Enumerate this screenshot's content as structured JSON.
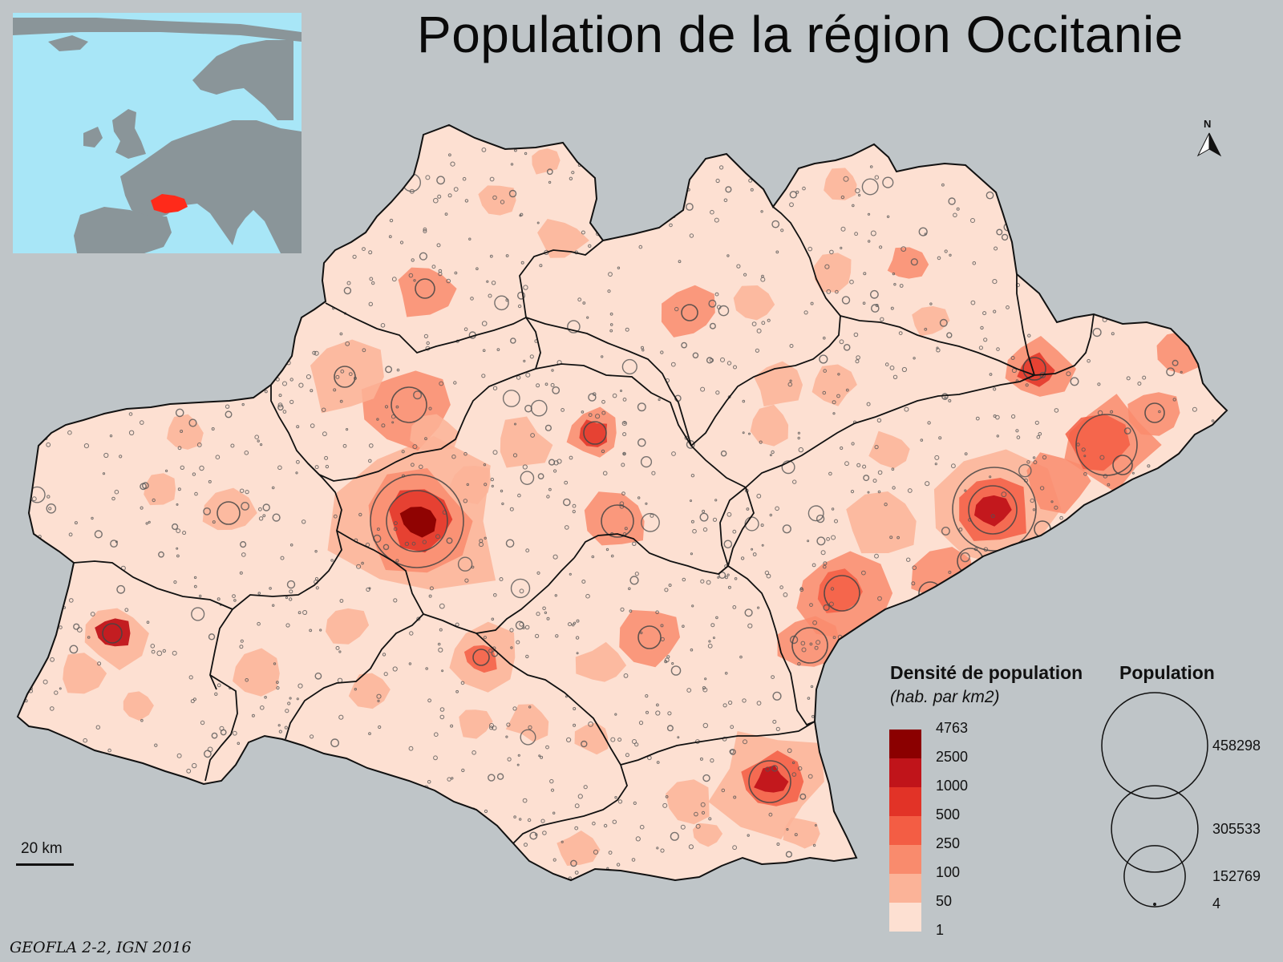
{
  "map": {
    "title": "Population de la région Occitanie",
    "source": "GEOFLA 2-2, IGN 2016",
    "scale_bar_label": "20 km",
    "north_label": "N"
  },
  "inset": {
    "sea_color": "#a8e6f7",
    "land_color": "#8a9599",
    "highlight_color": "#ff2a1a"
  },
  "legend_density": {
    "title": "Densité de population",
    "subtitle": "(hab. par km2)",
    "classes": [
      {
        "label": "4763",
        "color": "#8b0000"
      },
      {
        "label": "2500",
        "color": "#c0141a"
      },
      {
        "label": "1000",
        "color": "#e23327"
      },
      {
        "label": "500",
        "color": "#f35d44"
      },
      {
        "label": "250",
        "color": "#f98b6d"
      },
      {
        "label": "100",
        "color": "#fbb398"
      },
      {
        "label": "50",
        "color": "#fde0d2"
      },
      {
        "label": "1",
        "color": "#fde0d2"
      }
    ]
  },
  "legend_population": {
    "title": "Population",
    "values": [
      {
        "label": "458298",
        "value": 458298
      },
      {
        "label": "305533",
        "value": 305533
      },
      {
        "label": "152769",
        "value": 152769
      },
      {
        "label": "4",
        "value": 4
      }
    ]
  },
  "colors": {
    "background": "#bfc5c8",
    "base_fill": "#fde0d2",
    "boundary": "#111111"
  }
}
